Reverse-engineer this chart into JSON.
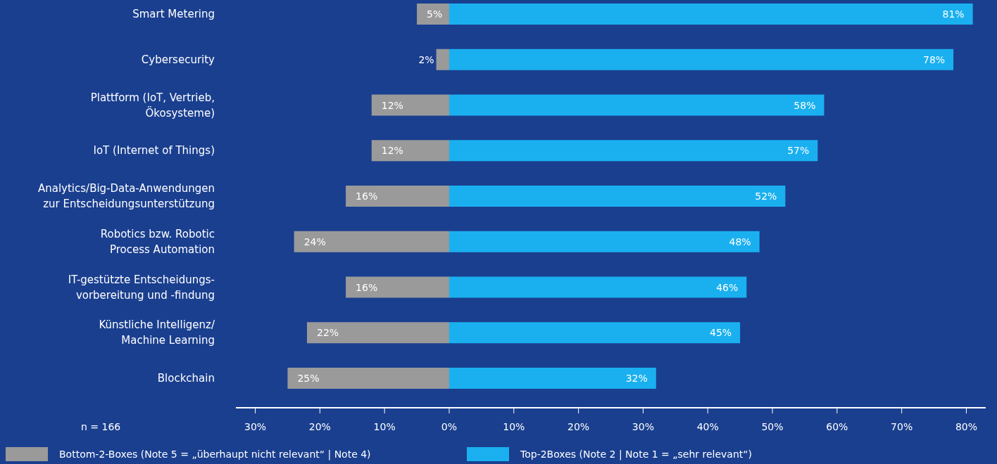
{
  "chart_data": {
    "type": "bar",
    "orientation": "horizontal",
    "categories": [
      "Smart Metering",
      "Cybersecurity",
      "Plattform (IoT, Vertrieb,\nÖkosysteme)",
      "IoT (Internet of Things)",
      "Analytics/Big-Data-Anwendungen\nzur Entscheidungsunterstützung",
      "Robotics bzw. Robotic\nProcess Automation",
      "IT-gestützte Entscheidungs-\nvorbereitung und -findung",
      "Künstliche Intelligenz/\nMachine Learning",
      "Blockchain"
    ],
    "series": [
      {
        "name": "Bottom-2-Boxes (Note 5 = „überhaupt nicht relevant“ | Note 4)",
        "color": "#9a9a9a",
        "values": [
          5,
          2,
          12,
          12,
          16,
          24,
          16,
          22,
          25
        ],
        "base": [
          -5,
          -2,
          -12,
          -12,
          -16,
          -24,
          -16,
          -22,
          -25
        ],
        "value_labels": [
          "5%",
          "2%",
          "12%",
          "12%",
          "16%",
          "24%",
          "16%",
          "22%",
          "25%"
        ]
      },
      {
        "name": "Top-2Boxes (Note 2 | Note 1 = „sehr relevant“)",
        "color": "#1ab0f0",
        "values": [
          81,
          78,
          58,
          57,
          52,
          48,
          46,
          45,
          32
        ],
        "value_labels": [
          "81%",
          "78%",
          "58%",
          "57%",
          "52%",
          "48%",
          "46%",
          "45%",
          "32%"
        ]
      }
    ],
    "xlim": [
      -33,
      83
    ],
    "xticks": [
      {
        "value": -30,
        "label": "30%"
      },
      {
        "value": -20,
        "label": "20%"
      },
      {
        "value": -10,
        "label": "10%"
      },
      {
        "value": 0,
        "label": "0%"
      },
      {
        "value": 10,
        "label": "10%"
      },
      {
        "value": 20,
        "label": "20%"
      },
      {
        "value": 30,
        "label": "30%"
      },
      {
        "value": 40,
        "label": "40%"
      },
      {
        "value": 50,
        "label": "50%"
      },
      {
        "value": 60,
        "label": "60%"
      },
      {
        "value": 70,
        "label": "70%"
      },
      {
        "value": 80,
        "label": "80%"
      }
    ],
    "legend": "bottom",
    "annotations": [
      "n = 166"
    ]
  }
}
